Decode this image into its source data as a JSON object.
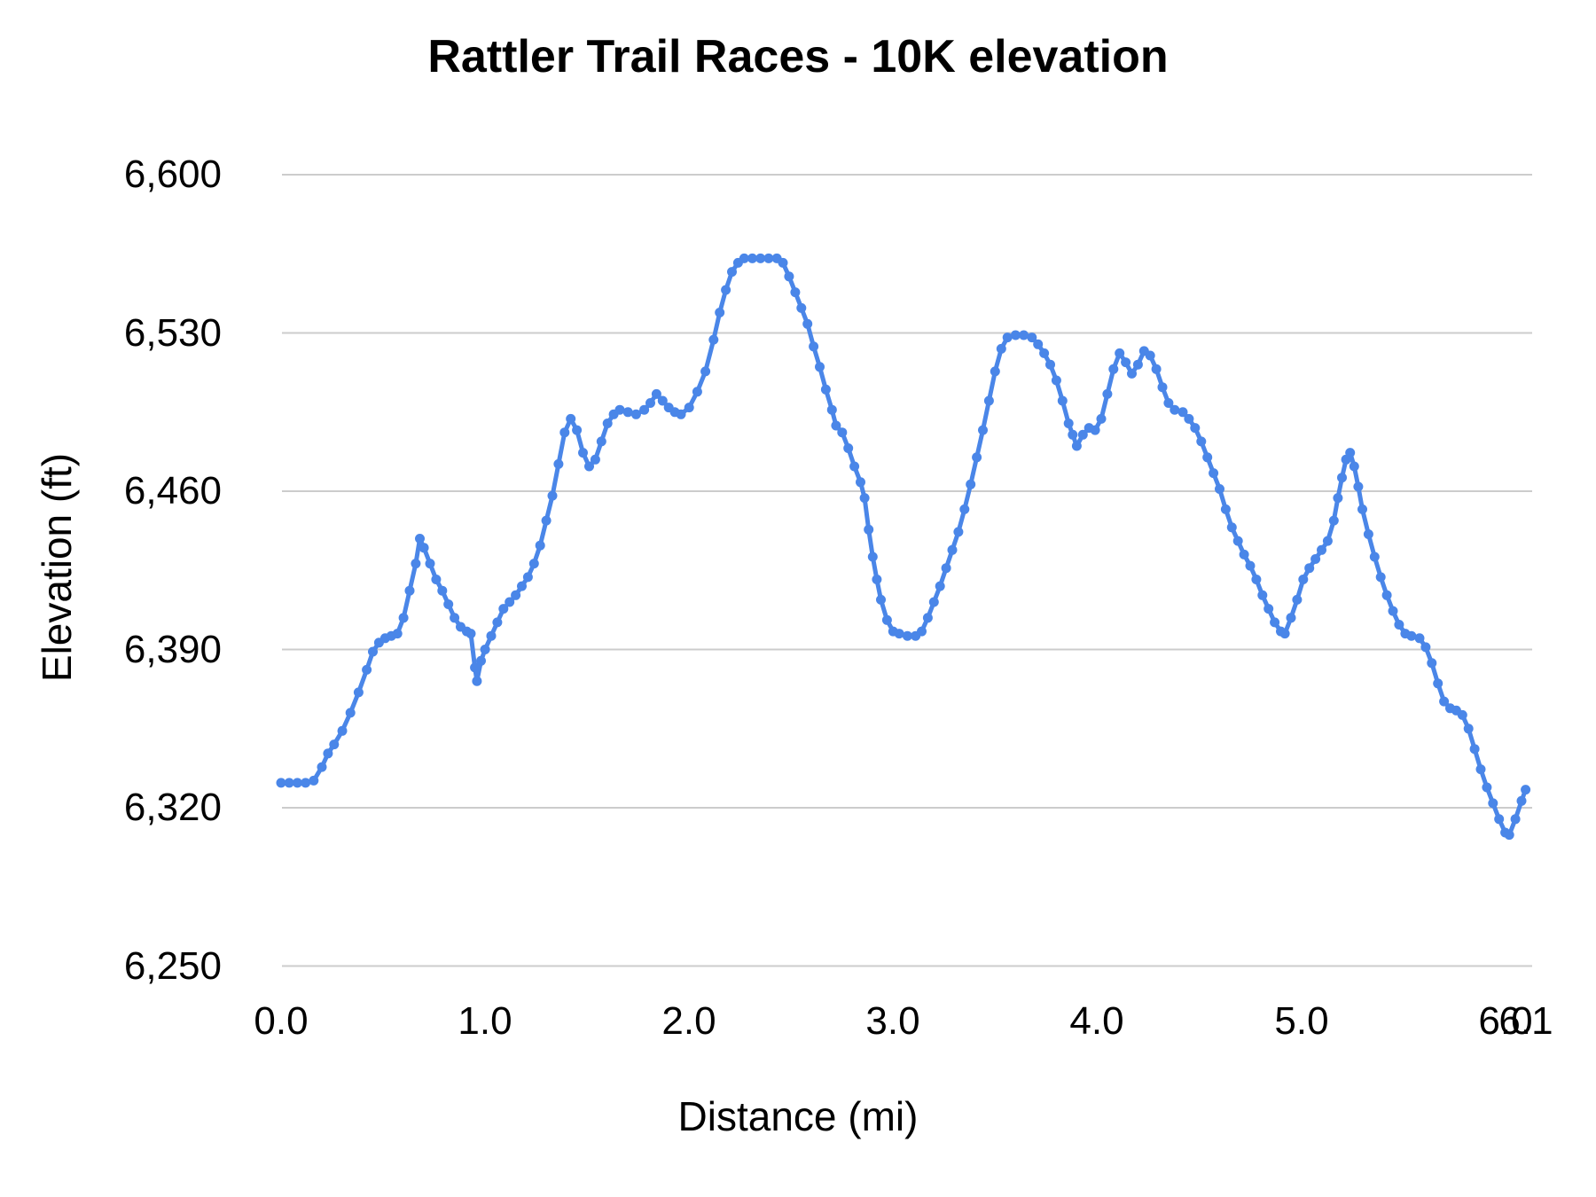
{
  "chart_data": {
    "type": "line",
    "title": "Rattler Trail Races - 10K elevation",
    "xlabel": "Distance (mi)",
    "ylabel": "Elevation (ft)",
    "xlim": [
      0,
      6.13
    ],
    "ylim": [
      6250,
      6600
    ],
    "grid": "horizontal-only",
    "legend": "none",
    "gridline_color": "#cccccc",
    "background_color": "#ffffff",
    "x_ticks": [
      {
        "label": "0.0",
        "value": 0.0
      },
      {
        "label": "1.0",
        "value": 1.0
      },
      {
        "label": "2.0",
        "value": 2.0
      },
      {
        "label": "3.0",
        "value": 3.0
      },
      {
        "label": "4.0",
        "value": 4.0
      },
      {
        "label": "5.0",
        "value": 5.0
      },
      {
        "label": "6.0",
        "value": 6.0
      },
      {
        "label": "6.1",
        "value": 6.1
      }
    ],
    "y_ticks": [
      {
        "label": "6,250",
        "value": 6250
      },
      {
        "label": "6,320",
        "value": 6320
      },
      {
        "label": "6,390",
        "value": 6390
      },
      {
        "label": "6,460",
        "value": 6460
      },
      {
        "label": "6,530",
        "value": 6530
      },
      {
        "label": "6,600",
        "value": 6600
      }
    ],
    "series": [
      {
        "name": "elevation",
        "color": "#4a86e8",
        "marker": "circle",
        "points": [
          [
            0.0,
            6331
          ],
          [
            0.04,
            6331
          ],
          [
            0.08,
            6331
          ],
          [
            0.12,
            6331
          ],
          [
            0.16,
            6332
          ],
          [
            0.2,
            6338
          ],
          [
            0.23,
            6344
          ],
          [
            0.26,
            6348
          ],
          [
            0.3,
            6354
          ],
          [
            0.34,
            6362
          ],
          [
            0.38,
            6371
          ],
          [
            0.42,
            6381
          ],
          [
            0.45,
            6389
          ],
          [
            0.48,
            6393
          ],
          [
            0.51,
            6395
          ],
          [
            0.54,
            6396
          ],
          [
            0.57,
            6397
          ],
          [
            0.6,
            6404
          ],
          [
            0.63,
            6416
          ],
          [
            0.66,
            6428
          ],
          [
            0.68,
            6439
          ],
          [
            0.7,
            6435
          ],
          [
            0.73,
            6428
          ],
          [
            0.76,
            6421
          ],
          [
            0.79,
            6416
          ],
          [
            0.82,
            6410
          ],
          [
            0.85,
            6404
          ],
          [
            0.88,
            6400
          ],
          [
            0.91,
            6398
          ],
          [
            0.93,
            6397
          ],
          [
            0.95,
            6382
          ],
          [
            0.96,
            6376
          ],
          [
            0.98,
            6385
          ],
          [
            1.0,
            6390
          ],
          [
            1.03,
            6396
          ],
          [
            1.06,
            6402
          ],
          [
            1.09,
            6408
          ],
          [
            1.12,
            6411
          ],
          [
            1.15,
            6414
          ],
          [
            1.18,
            6418
          ],
          [
            1.21,
            6422
          ],
          [
            1.24,
            6428
          ],
          [
            1.27,
            6436
          ],
          [
            1.3,
            6447
          ],
          [
            1.33,
            6458
          ],
          [
            1.36,
            6472
          ],
          [
            1.39,
            6486
          ],
          [
            1.42,
            6492
          ],
          [
            1.45,
            6487
          ],
          [
            1.48,
            6477
          ],
          [
            1.51,
            6471
          ],
          [
            1.54,
            6474
          ],
          [
            1.57,
            6482
          ],
          [
            1.6,
            6490
          ],
          [
            1.63,
            6494
          ],
          [
            1.66,
            6496
          ],
          [
            1.7,
            6495
          ],
          [
            1.74,
            6494
          ],
          [
            1.78,
            6496
          ],
          [
            1.81,
            6499
          ],
          [
            1.84,
            6503
          ],
          [
            1.87,
            6500
          ],
          [
            1.9,
            6497
          ],
          [
            1.93,
            6495
          ],
          [
            1.96,
            6494
          ],
          [
            2.0,
            6497
          ],
          [
            2.04,
            6504
          ],
          [
            2.08,
            6513
          ],
          [
            2.12,
            6527
          ],
          [
            2.15,
            6539
          ],
          [
            2.18,
            6549
          ],
          [
            2.21,
            6557
          ],
          [
            2.24,
            6561
          ],
          [
            2.27,
            6563
          ],
          [
            2.31,
            6563
          ],
          [
            2.35,
            6563
          ],
          [
            2.39,
            6563
          ],
          [
            2.43,
            6563
          ],
          [
            2.46,
            6561
          ],
          [
            2.49,
            6555
          ],
          [
            2.52,
            6548
          ],
          [
            2.55,
            6541
          ],
          [
            2.58,
            6534
          ],
          [
            2.61,
            6524
          ],
          [
            2.64,
            6515
          ],
          [
            2.67,
            6505
          ],
          [
            2.7,
            6496
          ],
          [
            2.72,
            6489
          ],
          [
            2.75,
            6486
          ],
          [
            2.78,
            6479
          ],
          [
            2.81,
            6471
          ],
          [
            2.84,
            6464
          ],
          [
            2.86,
            6457
          ],
          [
            2.88,
            6443
          ],
          [
            2.9,
            6431
          ],
          [
            2.92,
            6421
          ],
          [
            2.94,
            6412
          ],
          [
            2.97,
            6403
          ],
          [
            3.0,
            6398
          ],
          [
            3.03,
            6397
          ],
          [
            3.07,
            6396
          ],
          [
            3.11,
            6396
          ],
          [
            3.14,
            6398
          ],
          [
            3.17,
            6404
          ],
          [
            3.2,
            6411
          ],
          [
            3.23,
            6418
          ],
          [
            3.26,
            6426
          ],
          [
            3.29,
            6434
          ],
          [
            3.32,
            6442
          ],
          [
            3.35,
            6452
          ],
          [
            3.38,
            6463
          ],
          [
            3.41,
            6475
          ],
          [
            3.44,
            6487
          ],
          [
            3.47,
            6500
          ],
          [
            3.5,
            6513
          ],
          [
            3.53,
            6523
          ],
          [
            3.56,
            6528
          ],
          [
            3.6,
            6529
          ],
          [
            3.64,
            6529
          ],
          [
            3.68,
            6528
          ],
          [
            3.71,
            6525
          ],
          [
            3.74,
            6521
          ],
          [
            3.77,
            6516
          ],
          [
            3.8,
            6509
          ],
          [
            3.83,
            6500
          ],
          [
            3.86,
            6490
          ],
          [
            3.88,
            6485
          ],
          [
            3.9,
            6480
          ],
          [
            3.93,
            6485
          ],
          [
            3.96,
            6488
          ],
          [
            3.99,
            6487
          ],
          [
            4.02,
            6492
          ],
          [
            4.05,
            6503
          ],
          [
            4.08,
            6514
          ],
          [
            4.11,
            6521
          ],
          [
            4.14,
            6517
          ],
          [
            4.17,
            6512
          ],
          [
            4.2,
            6516
          ],
          [
            4.23,
            6522
          ],
          [
            4.26,
            6520
          ],
          [
            4.29,
            6514
          ],
          [
            4.32,
            6506
          ],
          [
            4.35,
            6499
          ],
          [
            4.38,
            6496
          ],
          [
            4.42,
            6495
          ],
          [
            4.45,
            6492
          ],
          [
            4.48,
            6488
          ],
          [
            4.51,
            6482
          ],
          [
            4.54,
            6475
          ],
          [
            4.57,
            6468
          ],
          [
            4.6,
            6461
          ],
          [
            4.63,
            6452
          ],
          [
            4.66,
            6444
          ],
          [
            4.69,
            6438
          ],
          [
            4.72,
            6432
          ],
          [
            4.75,
            6427
          ],
          [
            4.78,
            6421
          ],
          [
            4.81,
            6414
          ],
          [
            4.84,
            6408
          ],
          [
            4.87,
            6402
          ],
          [
            4.9,
            6398
          ],
          [
            4.92,
            6397
          ],
          [
            4.95,
            6404
          ],
          [
            4.98,
            6412
          ],
          [
            5.01,
            6421
          ],
          [
            5.04,
            6426
          ],
          [
            5.07,
            6430
          ],
          [
            5.1,
            6434
          ],
          [
            5.13,
            6438
          ],
          [
            5.16,
            6447
          ],
          [
            5.18,
            6457
          ],
          [
            5.2,
            6466
          ],
          [
            5.22,
            6474
          ],
          [
            5.24,
            6477
          ],
          [
            5.26,
            6471
          ],
          [
            5.28,
            6462
          ],
          [
            5.3,
            6452
          ],
          [
            5.33,
            6441
          ],
          [
            5.36,
            6431
          ],
          [
            5.39,
            6422
          ],
          [
            5.42,
            6414
          ],
          [
            5.45,
            6407
          ],
          [
            5.48,
            6401
          ],
          [
            5.51,
            6397
          ],
          [
            5.54,
            6396
          ],
          [
            5.58,
            6395
          ],
          [
            5.61,
            6391
          ],
          [
            5.64,
            6384
          ],
          [
            5.67,
            6375
          ],
          [
            5.7,
            6367
          ],
          [
            5.73,
            6364
          ],
          [
            5.76,
            6363
          ],
          [
            5.79,
            6361
          ],
          [
            5.82,
            6355
          ],
          [
            5.85,
            6346
          ],
          [
            5.88,
            6337
          ],
          [
            5.91,
            6329
          ],
          [
            5.94,
            6322
          ],
          [
            5.97,
            6315
          ],
          [
            6.0,
            6309
          ],
          [
            6.02,
            6308
          ],
          [
            6.05,
            6315
          ],
          [
            6.08,
            6323
          ],
          [
            6.1,
            6328
          ]
        ]
      }
    ]
  }
}
